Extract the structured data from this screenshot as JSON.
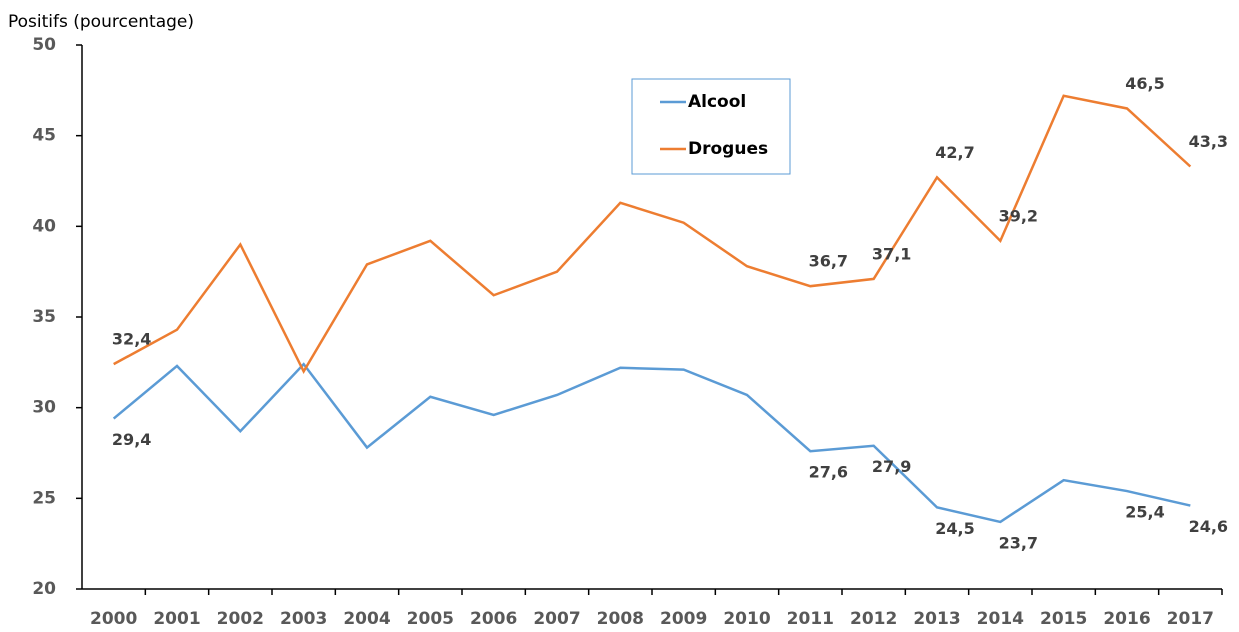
{
  "chart_data": {
    "type": "line",
    "y_axis_label": "Positifs (pourcentage)",
    "categories": [
      "2000",
      "2001",
      "2002",
      "2003",
      "2004",
      "2005",
      "2006",
      "2007",
      "2008",
      "2009",
      "2010",
      "2011",
      "2012",
      "2013",
      "2014",
      "2015",
      "2016",
      "2017"
    ],
    "series": [
      {
        "name": "Alcool",
        "color": "#5b9bd5",
        "values": [
          29.4,
          32.3,
          28.7,
          32.4,
          27.8,
          30.6,
          29.6,
          30.7,
          32.2,
          32.1,
          30.7,
          27.6,
          27.9,
          24.5,
          23.7,
          26.0,
          25.4,
          24.6
        ],
        "value_labels": [
          "29,4",
          null,
          null,
          null,
          null,
          null,
          null,
          null,
          null,
          null,
          null,
          "27,6",
          "27,9",
          "24,5",
          "23,7",
          null,
          "25,4",
          "24,6"
        ]
      },
      {
        "name": "Drogues",
        "color": "#ed7d31",
        "values": [
          32.4,
          34.3,
          39.0,
          32.0,
          37.9,
          39.2,
          36.2,
          37.5,
          41.3,
          40.2,
          37.8,
          36.7,
          37.1,
          42.7,
          39.2,
          47.2,
          46.5,
          43.3
        ],
        "value_labels": [
          "32,4",
          null,
          null,
          null,
          null,
          null,
          null,
          null,
          null,
          null,
          null,
          "36,7",
          "37,1",
          "42,7",
          "39,2",
          null,
          "46,5",
          "43,3"
        ]
      }
    ],
    "ylim": [
      20,
      50
    ],
    "yticks": [
      20,
      25,
      30,
      35,
      40,
      45,
      50
    ],
    "grid": false
  }
}
